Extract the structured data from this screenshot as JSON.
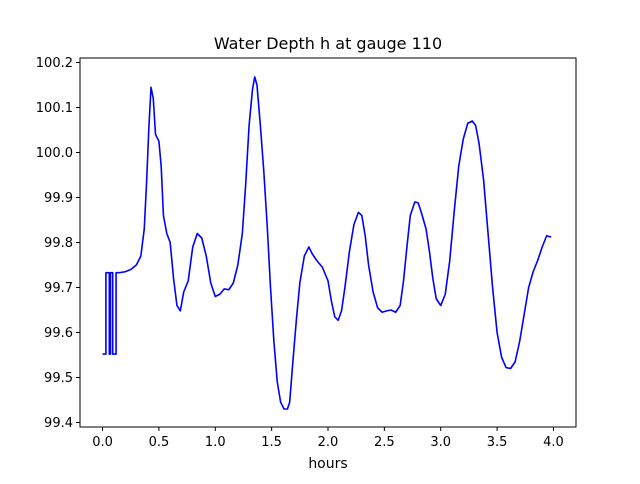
{
  "chart_data": {
    "type": "line",
    "title": "Water Depth h at gauge 110",
    "xlabel": "hours",
    "ylabel": "",
    "xlim": [
      -0.2,
      4.2
    ],
    "ylim": [
      99.39,
      100.21
    ],
    "x_ticks": [
      "0.0",
      "0.5",
      "1.0",
      "1.5",
      "2.0",
      "2.5",
      "3.0",
      "3.5",
      "4.0"
    ],
    "y_ticks": [
      "99.4",
      "99.5",
      "99.6",
      "99.7",
      "99.8",
      "99.9",
      "100.0",
      "100.1",
      "100.2"
    ],
    "grid": false,
    "series": [
      {
        "color": "#0000ff",
        "points": [
          [
            0.0,
            99.552
          ],
          [
            0.03,
            99.552
          ],
          [
            0.03,
            99.733
          ],
          [
            0.06,
            99.733
          ],
          [
            0.06,
            99.552
          ],
          [
            0.07,
            99.552
          ],
          [
            0.07,
            99.733
          ],
          [
            0.09,
            99.733
          ],
          [
            0.09,
            99.552
          ],
          [
            0.12,
            99.552
          ],
          [
            0.12,
            99.733
          ],
          [
            0.15,
            99.733
          ],
          [
            0.2,
            99.735
          ],
          [
            0.25,
            99.74
          ],
          [
            0.3,
            99.75
          ],
          [
            0.34,
            99.77
          ],
          [
            0.37,
            99.83
          ],
          [
            0.39,
            99.93
          ],
          [
            0.41,
            100.05
          ],
          [
            0.43,
            100.145
          ],
          [
            0.45,
            100.12
          ],
          [
            0.47,
            100.04
          ],
          [
            0.5,
            100.025
          ],
          [
            0.52,
            99.97
          ],
          [
            0.54,
            99.86
          ],
          [
            0.57,
            99.82
          ],
          [
            0.6,
            99.8
          ],
          [
            0.63,
            99.72
          ],
          [
            0.66,
            99.66
          ],
          [
            0.69,
            99.648
          ],
          [
            0.72,
            99.69
          ],
          [
            0.76,
            99.715
          ],
          [
            0.8,
            99.79
          ],
          [
            0.84,
            99.82
          ],
          [
            0.88,
            99.81
          ],
          [
            0.92,
            99.77
          ],
          [
            0.96,
            99.71
          ],
          [
            1.0,
            99.68
          ],
          [
            1.04,
            99.685
          ],
          [
            1.08,
            99.697
          ],
          [
            1.12,
            99.695
          ],
          [
            1.16,
            99.71
          ],
          [
            1.2,
            99.75
          ],
          [
            1.24,
            99.82
          ],
          [
            1.27,
            99.93
          ],
          [
            1.3,
            100.06
          ],
          [
            1.33,
            100.14
          ],
          [
            1.35,
            100.168
          ],
          [
            1.37,
            100.15
          ],
          [
            1.4,
            100.06
          ],
          [
            1.43,
            99.96
          ],
          [
            1.46,
            99.84
          ],
          [
            1.49,
            99.7
          ],
          [
            1.52,
            99.58
          ],
          [
            1.55,
            99.49
          ],
          [
            1.58,
            99.445
          ],
          [
            1.61,
            99.43
          ],
          [
            1.64,
            99.43
          ],
          [
            1.66,
            99.445
          ],
          [
            1.69,
            99.54
          ],
          [
            1.72,
            99.63
          ],
          [
            1.75,
            99.71
          ],
          [
            1.79,
            99.77
          ],
          [
            1.83,
            99.79
          ],
          [
            1.86,
            99.775
          ],
          [
            1.9,
            99.76
          ],
          [
            1.95,
            99.745
          ],
          [
            2.0,
            99.715
          ],
          [
            2.03,
            99.67
          ],
          [
            2.06,
            99.635
          ],
          [
            2.09,
            99.627
          ],
          [
            2.12,
            99.648
          ],
          [
            2.15,
            99.7
          ],
          [
            2.19,
            99.78
          ],
          [
            2.23,
            99.84
          ],
          [
            2.27,
            99.867
          ],
          [
            2.3,
            99.86
          ],
          [
            2.33,
            99.815
          ],
          [
            2.36,
            99.75
          ],
          [
            2.4,
            99.69
          ],
          [
            2.44,
            99.655
          ],
          [
            2.48,
            99.645
          ],
          [
            2.52,
            99.648
          ],
          [
            2.56,
            99.65
          ],
          [
            2.6,
            99.645
          ],
          [
            2.64,
            99.66
          ],
          [
            2.67,
            99.715
          ],
          [
            2.7,
            99.79
          ],
          [
            2.73,
            99.86
          ],
          [
            2.77,
            99.89
          ],
          [
            2.8,
            99.888
          ],
          [
            2.83,
            99.865
          ],
          [
            2.87,
            99.83
          ],
          [
            2.9,
            99.78
          ],
          [
            2.93,
            99.72
          ],
          [
            2.96,
            99.675
          ],
          [
            3.0,
            99.66
          ],
          [
            3.04,
            99.685
          ],
          [
            3.08,
            99.76
          ],
          [
            3.12,
            99.87
          ],
          [
            3.16,
            99.97
          ],
          [
            3.2,
            100.03
          ],
          [
            3.24,
            100.065
          ],
          [
            3.28,
            100.07
          ],
          [
            3.31,
            100.06
          ],
          [
            3.34,
            100.02
          ],
          [
            3.38,
            99.94
          ],
          [
            3.42,
            99.82
          ],
          [
            3.46,
            99.7
          ],
          [
            3.5,
            99.6
          ],
          [
            3.54,
            99.545
          ],
          [
            3.58,
            99.522
          ],
          [
            3.62,
            99.52
          ],
          [
            3.66,
            99.535
          ],
          [
            3.7,
            99.58
          ],
          [
            3.74,
            99.64
          ],
          [
            3.78,
            99.7
          ],
          [
            3.82,
            99.735
          ],
          [
            3.86,
            99.76
          ],
          [
            3.9,
            99.79
          ],
          [
            3.94,
            99.815
          ],
          [
            3.98,
            99.812
          ]
        ]
      }
    ]
  }
}
